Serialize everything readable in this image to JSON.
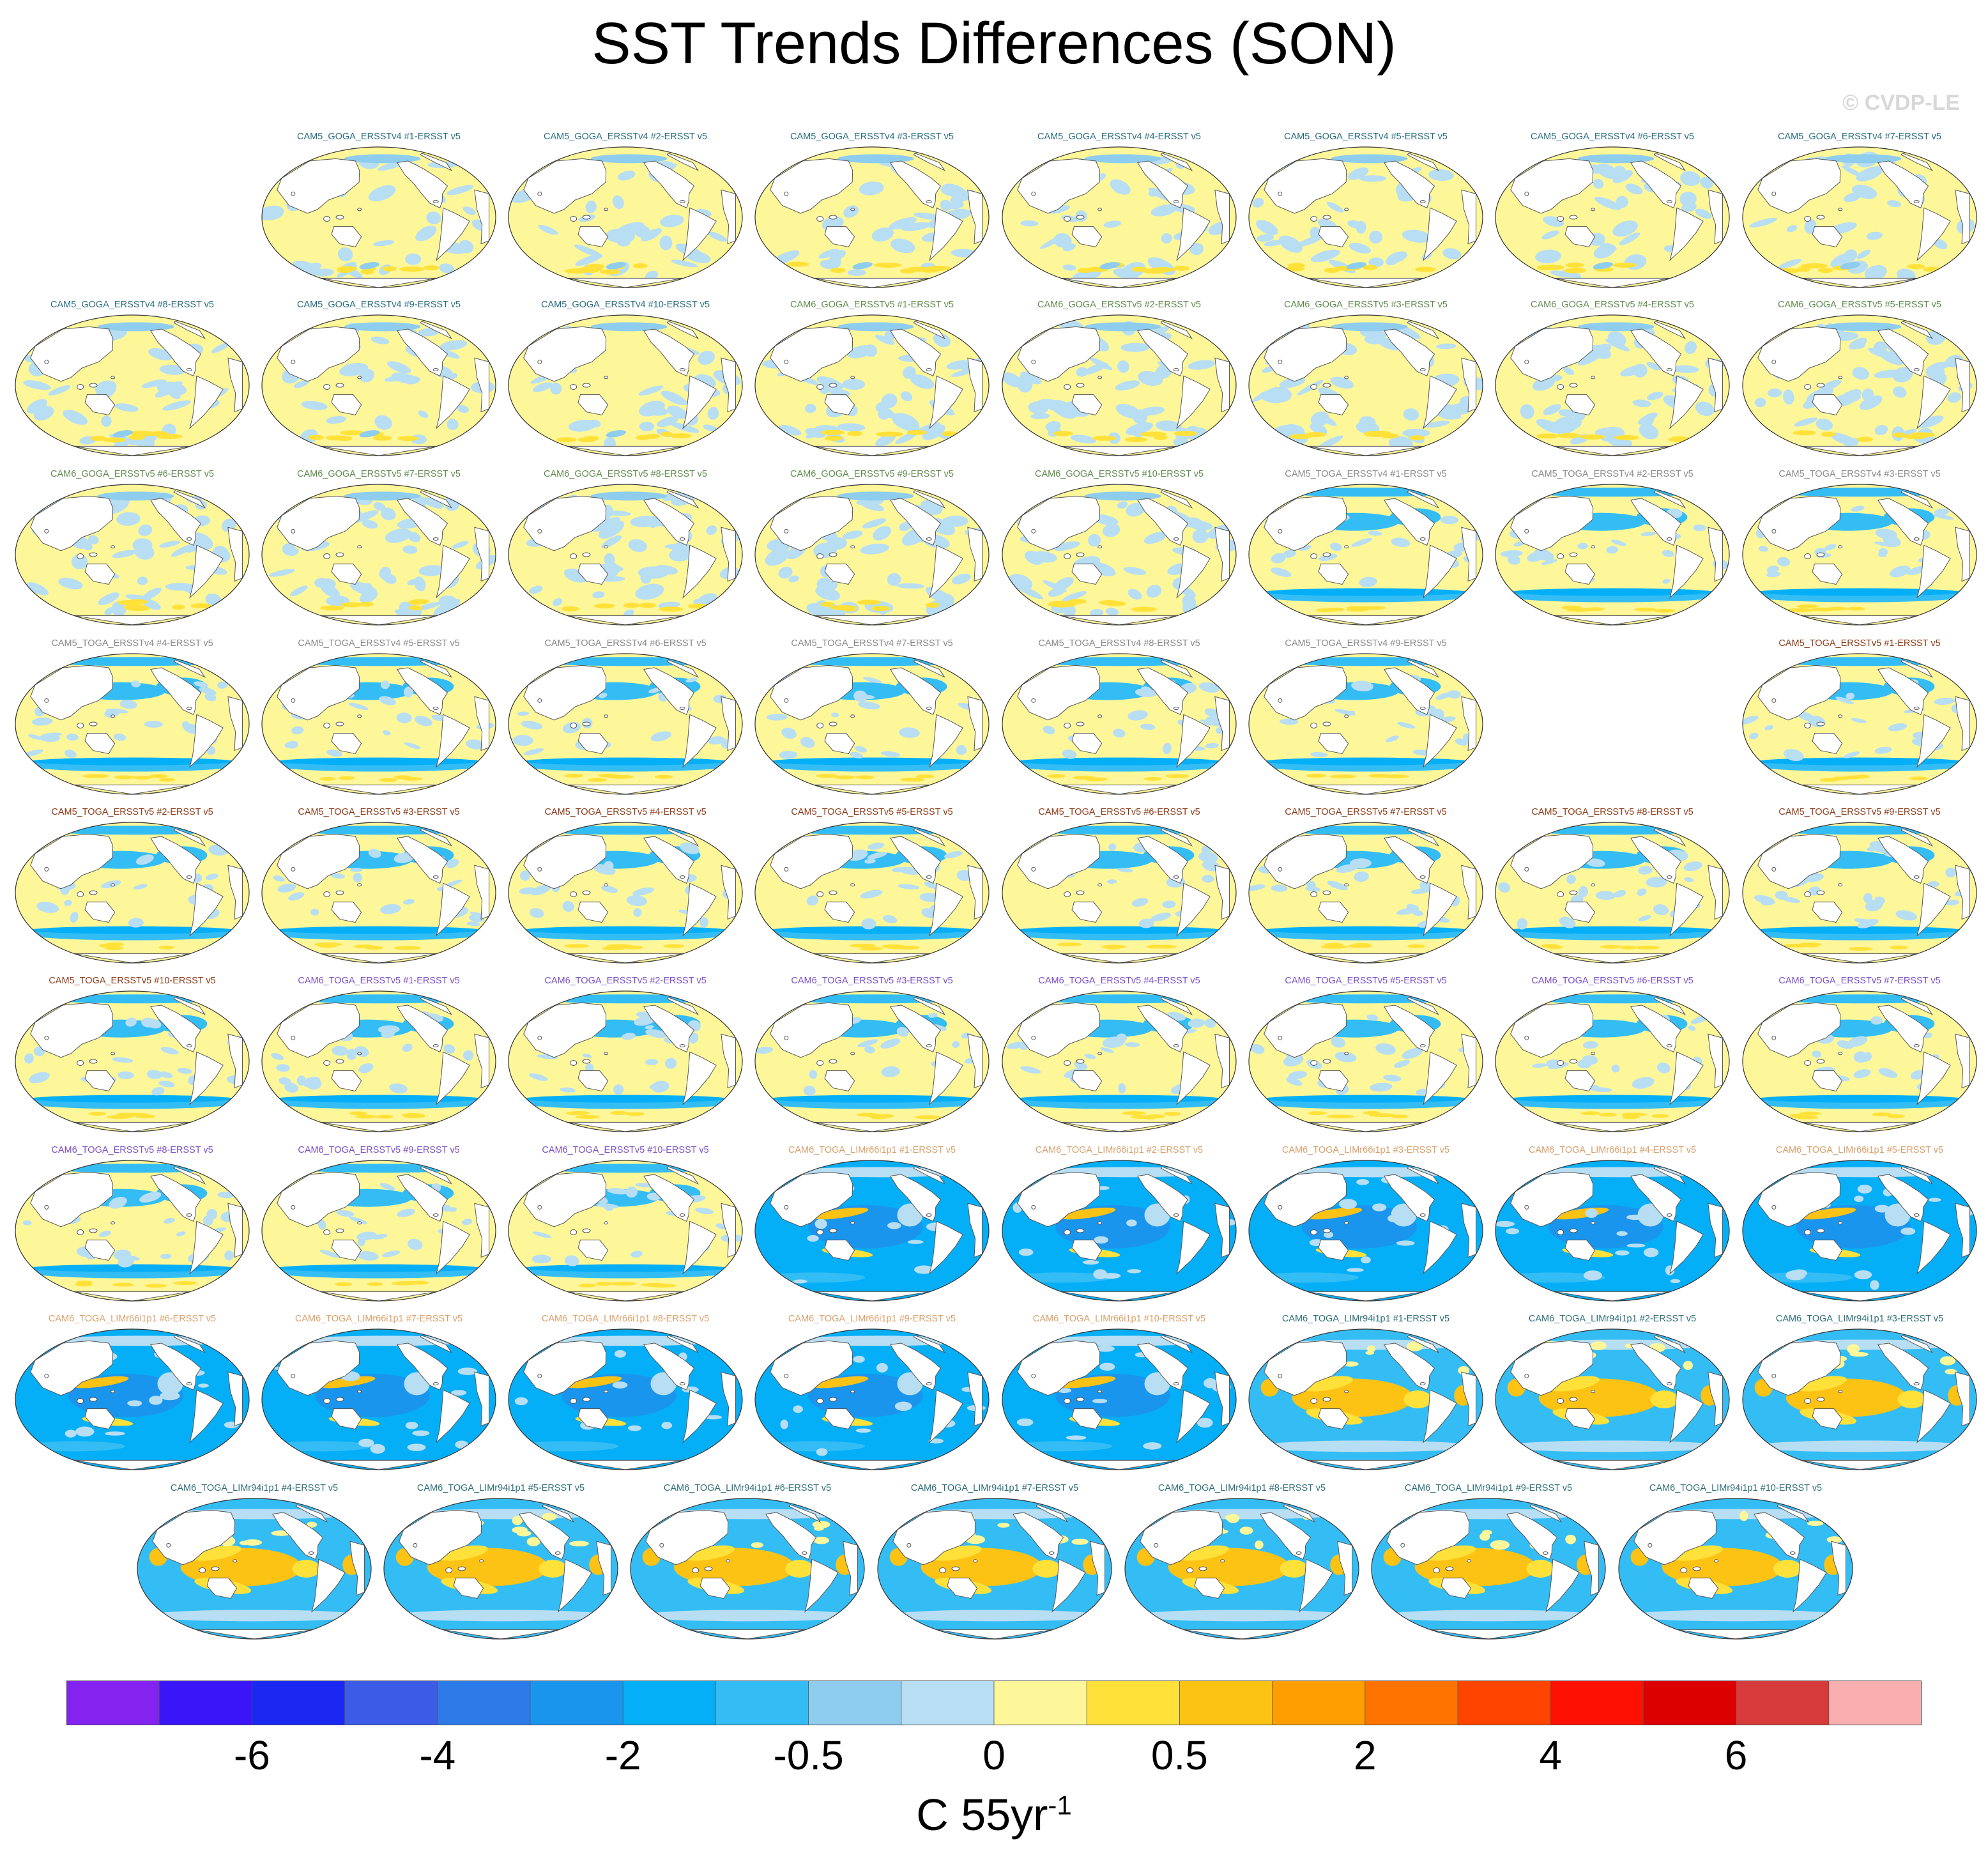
{
  "title": "SST Trends Differences (SON)",
  "credit": "© CVDP-LE",
  "units": {
    "base": "C 55yr",
    "exp": "-1"
  },
  "chart_data": {
    "type": "map-panels",
    "title": "SST Trends Differences (SON)",
    "colorbar": {
      "labels": [
        "-6",
        "-4",
        "-2",
        "-0.5",
        "0",
        "0.5",
        "2",
        "4",
        "6"
      ],
      "colors": [
        "#8422f0",
        "#3a15f7",
        "#1a28f2",
        "#3c5be6",
        "#2c7be9",
        "#1a95ee",
        "#05aff7",
        "#34bdf5",
        "#8fcdee",
        "#b8def3",
        "#fdf79a",
        "#ffe13a",
        "#fcc214",
        "#ff9e00",
        "#ff7300",
        "#ff4400",
        "#ff1100",
        "#dc0000",
        "#d63a3a",
        "#f9afaf"
      ],
      "units": "C 55yr-1"
    },
    "panels": [
      {
        "name": "CAM5_GOGA_ERSSTv4 #1-ERSST v5",
        "group": "c5goga4",
        "pattern": "goga4",
        "title_color": "#2a6d80"
      },
      {
        "name": "CAM5_GOGA_ERSSTv4 #2-ERSST v5",
        "group": "c5goga4",
        "pattern": "goga4",
        "title_color": "#2a6d80"
      },
      {
        "name": "CAM5_GOGA_ERSSTv4 #3-ERSST v5",
        "group": "c5goga4",
        "pattern": "goga4",
        "title_color": "#2a6d80"
      },
      {
        "name": "CAM5_GOGA_ERSSTv4 #4-ERSST v5",
        "group": "c5goga4",
        "pattern": "goga4",
        "title_color": "#2a6d80"
      },
      {
        "name": "CAM5_GOGA_ERSSTv4 #5-ERSST v5",
        "group": "c5goga4",
        "pattern": "goga4",
        "title_color": "#2a6d80"
      },
      {
        "name": "CAM5_GOGA_ERSSTv4 #6-ERSST v5",
        "group": "c5goga4",
        "pattern": "goga4",
        "title_color": "#2a6d80"
      },
      {
        "name": "CAM5_GOGA_ERSSTv4 #7-ERSST v5",
        "group": "c5goga4",
        "pattern": "goga4",
        "title_color": "#2a6d80"
      },
      {
        "name": "CAM5_GOGA_ERSSTv4 #8-ERSST v5",
        "group": "c5goga4",
        "pattern": "goga4",
        "title_color": "#2a6d80"
      },
      {
        "name": "CAM5_GOGA_ERSSTv4 #9-ERSST v5",
        "group": "c5goga4",
        "pattern": "goga4",
        "title_color": "#2a6d80"
      },
      {
        "name": "CAM5_GOGA_ERSSTv4 #10-ERSST v5",
        "group": "c5goga4",
        "pattern": "goga4",
        "title_color": "#2a6d80"
      },
      {
        "name": "CAM6_GOGA_ERSSTv5 #1-ERSST v5",
        "group": "c6goga5",
        "pattern": "goga5",
        "title_color": "#5f8a4e"
      },
      {
        "name": "CAM6_GOGA_ERSSTv5 #2-ERSST v5",
        "group": "c6goga5",
        "pattern": "goga5",
        "title_color": "#5f8a4e"
      },
      {
        "name": "CAM6_GOGA_ERSSTv5 #3-ERSST v5",
        "group": "c6goga5",
        "pattern": "goga5",
        "title_color": "#5f8a4e"
      },
      {
        "name": "CAM6_GOGA_ERSSTv5 #4-ERSST v5",
        "group": "c6goga5",
        "pattern": "goga5",
        "title_color": "#5f8a4e"
      },
      {
        "name": "CAM6_GOGA_ERSSTv5 #5-ERSST v5",
        "group": "c6goga5",
        "pattern": "goga5",
        "title_color": "#5f8a4e"
      },
      {
        "name": "CAM6_GOGA_ERSSTv5 #6-ERSST v5",
        "group": "c6goga5",
        "pattern": "goga5",
        "title_color": "#5f8a4e"
      },
      {
        "name": "CAM6_GOGA_ERSSTv5 #7-ERSST v5",
        "group": "c6goga5",
        "pattern": "goga5",
        "title_color": "#5f8a4e"
      },
      {
        "name": "CAM6_GOGA_ERSSTv5 #8-ERSST v5",
        "group": "c6goga5",
        "pattern": "goga5",
        "title_color": "#5f8a4e"
      },
      {
        "name": "CAM6_GOGA_ERSSTv5 #9-ERSST v5",
        "group": "c6goga5",
        "pattern": "goga5",
        "title_color": "#5f8a4e"
      },
      {
        "name": "CAM6_GOGA_ERSSTv5 #10-ERSST v5",
        "group": "c6goga5",
        "pattern": "goga5",
        "title_color": "#5f8a4e"
      },
      {
        "name": "CAM5_TOGA_ERSSTv4 #1-ERSST v5",
        "group": "c5toga4",
        "pattern": "toga",
        "title_color": "#8a8a8a"
      },
      {
        "name": "CAM5_TOGA_ERSSTv4 #2-ERSST v5",
        "group": "c5toga4",
        "pattern": "toga",
        "title_color": "#8a8a8a"
      },
      {
        "name": "CAM5_TOGA_ERSSTv4 #3-ERSST v5",
        "group": "c5toga4",
        "pattern": "toga",
        "title_color": "#8a8a8a"
      },
      {
        "name": "CAM5_TOGA_ERSSTv4 #4-ERSST v5",
        "group": "c5toga4",
        "pattern": "toga",
        "title_color": "#8a8a8a"
      },
      {
        "name": "CAM5_TOGA_ERSSTv4 #5-ERSST v5",
        "group": "c5toga4",
        "pattern": "toga",
        "title_color": "#8a8a8a"
      },
      {
        "name": "CAM5_TOGA_ERSSTv4 #6-ERSST v5",
        "group": "c5toga4",
        "pattern": "toga",
        "title_color": "#8a8a8a"
      },
      {
        "name": "CAM5_TOGA_ERSSTv4 #7-ERSST v5",
        "group": "c5toga4",
        "pattern": "toga",
        "title_color": "#8a8a8a"
      },
      {
        "name": "CAM5_TOGA_ERSSTv4 #8-ERSST v5",
        "group": "c5toga4",
        "pattern": "toga",
        "title_color": "#8a8a8a"
      },
      {
        "name": "CAM5_TOGA_ERSSTv4 #9-ERSST v5",
        "group": "c5toga4",
        "pattern": "toga",
        "title_color": "#8a8a8a"
      },
      {
        "name": "CAM5_TOGA_ERSSTv5 #1-ERSST v5",
        "group": "c5toga5",
        "pattern": "toga",
        "title_color": "#8b3a16"
      },
      {
        "name": "CAM5_TOGA_ERSSTv5 #2-ERSST v5",
        "group": "c5toga5",
        "pattern": "toga",
        "title_color": "#8b3a16"
      },
      {
        "name": "CAM5_TOGA_ERSSTv5 #3-ERSST v5",
        "group": "c5toga5",
        "pattern": "toga",
        "title_color": "#8b3a16"
      },
      {
        "name": "CAM5_TOGA_ERSSTv5 #4-ERSST v5",
        "group": "c5toga5",
        "pattern": "toga",
        "title_color": "#8b3a16"
      },
      {
        "name": "CAM5_TOGA_ERSSTv5 #5-ERSST v5",
        "group": "c5toga5",
        "pattern": "toga",
        "title_color": "#8b3a16"
      },
      {
        "name": "CAM5_TOGA_ERSSTv5 #6-ERSST v5",
        "group": "c5toga5",
        "pattern": "toga",
        "title_color": "#8b3a16"
      },
      {
        "name": "CAM5_TOGA_ERSSTv5 #7-ERSST v5",
        "group": "c5toga5",
        "pattern": "toga",
        "title_color": "#8b3a16"
      },
      {
        "name": "CAM5_TOGA_ERSSTv5 #8-ERSST v5",
        "group": "c5toga5",
        "pattern": "toga",
        "title_color": "#8b3a16"
      },
      {
        "name": "CAM5_TOGA_ERSSTv5 #9-ERSST v5",
        "group": "c5toga5",
        "pattern": "toga",
        "title_color": "#8b3a16"
      },
      {
        "name": "CAM5_TOGA_ERSSTv5 #10-ERSST v5",
        "group": "c5toga5",
        "pattern": "toga",
        "title_color": "#8b3a16"
      },
      {
        "name": "CAM6_TOGA_ERSSTv5 #1-ERSST v5",
        "group": "c6toga5",
        "pattern": "toga",
        "title_color": "#7a4fc6"
      },
      {
        "name": "CAM6_TOGA_ERSSTv5 #2-ERSST v5",
        "group": "c6toga5",
        "pattern": "toga",
        "title_color": "#7a4fc6"
      },
      {
        "name": "CAM6_TOGA_ERSSTv5 #3-ERSST v5",
        "group": "c6toga5",
        "pattern": "toga",
        "title_color": "#7a4fc6"
      },
      {
        "name": "CAM6_TOGA_ERSSTv5 #4-ERSST v5",
        "group": "c6toga5",
        "pattern": "toga",
        "title_color": "#7a4fc6"
      },
      {
        "name": "CAM6_TOGA_ERSSTv5 #5-ERSST v5",
        "group": "c6toga5",
        "pattern": "toga",
        "title_color": "#7a4fc6"
      },
      {
        "name": "CAM6_TOGA_ERSSTv5 #6-ERSST v5",
        "group": "c6toga5",
        "pattern": "toga",
        "title_color": "#7a4fc6"
      },
      {
        "name": "CAM6_TOGA_ERSSTv5 #7-ERSST v5",
        "group": "c6toga5",
        "pattern": "toga",
        "title_color": "#7a4fc6"
      },
      {
        "name": "CAM6_TOGA_ERSSTv5 #8-ERSST v5",
        "group": "c6toga5",
        "pattern": "toga",
        "title_color": "#7a4fc6"
      },
      {
        "name": "CAM6_TOGA_ERSSTv5 #9-ERSST v5",
        "group": "c6toga5",
        "pattern": "toga",
        "title_color": "#7a4fc6"
      },
      {
        "name": "CAM6_TOGA_ERSSTv5 #10-ERSST v5",
        "group": "c6toga5",
        "pattern": "toga",
        "title_color": "#7a4fc6"
      },
      {
        "name": "CAM6_TOGA_LIMr66i1p1 #1-ERSST v5",
        "group": "lim66",
        "pattern": "lim66",
        "title_color": "#d9a06a"
      },
      {
        "name": "CAM6_TOGA_LIMr66i1p1 #2-ERSST v5",
        "group": "lim66",
        "pattern": "lim66",
        "title_color": "#d9a06a"
      },
      {
        "name": "CAM6_TOGA_LIMr66i1p1 #3-ERSST v5",
        "group": "lim66",
        "pattern": "lim66",
        "title_color": "#d9a06a"
      },
      {
        "name": "CAM6_TOGA_LIMr66i1p1 #4-ERSST v5",
        "group": "lim66",
        "pattern": "lim66",
        "title_color": "#d9a06a"
      },
      {
        "name": "CAM6_TOGA_LIMr66i1p1 #5-ERSST v5",
        "group": "lim66",
        "pattern": "lim66",
        "title_color": "#d9a06a"
      },
      {
        "name": "CAM6_TOGA_LIMr66i1p1 #6-ERSST v5",
        "group": "lim66",
        "pattern": "lim66",
        "title_color": "#d9a06a"
      },
      {
        "name": "CAM6_TOGA_LIMr66i1p1 #7-ERSST v5",
        "group": "lim66",
        "pattern": "lim66",
        "title_color": "#d9a06a"
      },
      {
        "name": "CAM6_TOGA_LIMr66i1p1 #8-ERSST v5",
        "group": "lim66",
        "pattern": "lim66",
        "title_color": "#d9a06a"
      },
      {
        "name": "CAM6_TOGA_LIMr66i1p1 #9-ERSST v5",
        "group": "lim66",
        "pattern": "lim66",
        "title_color": "#d9a06a"
      },
      {
        "name": "CAM6_TOGA_LIMr66i1p1 #10-ERSST v5",
        "group": "lim66",
        "pattern": "lim66",
        "title_color": "#d9a06a"
      },
      {
        "name": "CAM6_TOGA_LIMr94i1p1 #1-ERSST v5",
        "group": "lim94",
        "pattern": "lim94",
        "title_color": "#2e6e78"
      },
      {
        "name": "CAM6_TOGA_LIMr94i1p1 #2-ERSST v5",
        "group": "lim94",
        "pattern": "lim94",
        "title_color": "#2e6e78"
      },
      {
        "name": "CAM6_TOGA_LIMr94i1p1 #3-ERSST v5",
        "group": "lim94",
        "pattern": "lim94",
        "title_color": "#2e6e78"
      },
      {
        "name": "CAM6_TOGA_LIMr94i1p1 #4-ERSST v5",
        "group": "lim94",
        "pattern": "lim94",
        "title_color": "#2e6e78"
      },
      {
        "name": "CAM6_TOGA_LIMr94i1p1 #5-ERSST v5",
        "group": "lim94",
        "pattern": "lim94",
        "title_color": "#2e6e78"
      },
      {
        "name": "CAM6_TOGA_LIMr94i1p1 #6-ERSST v5",
        "group": "lim94",
        "pattern": "lim94",
        "title_color": "#2e6e78"
      },
      {
        "name": "CAM6_TOGA_LIMr94i1p1 #7-ERSST v5",
        "group": "lim94",
        "pattern": "lim94",
        "title_color": "#2e6e78"
      },
      {
        "name": "CAM6_TOGA_LIMr94i1p1 #8-ERSST v5",
        "group": "lim94",
        "pattern": "lim94",
        "title_color": "#2e6e78"
      },
      {
        "name": "CAM6_TOGA_LIMr94i1p1 #9-ERSST v5",
        "group": "lim94",
        "pattern": "lim94",
        "title_color": "#2e6e78"
      },
      {
        "name": "CAM6_TOGA_LIMr94i1p1 #10-ERSST v5",
        "group": "lim94",
        "pattern": "lim94",
        "title_color": "#2e6e78"
      }
    ]
  }
}
